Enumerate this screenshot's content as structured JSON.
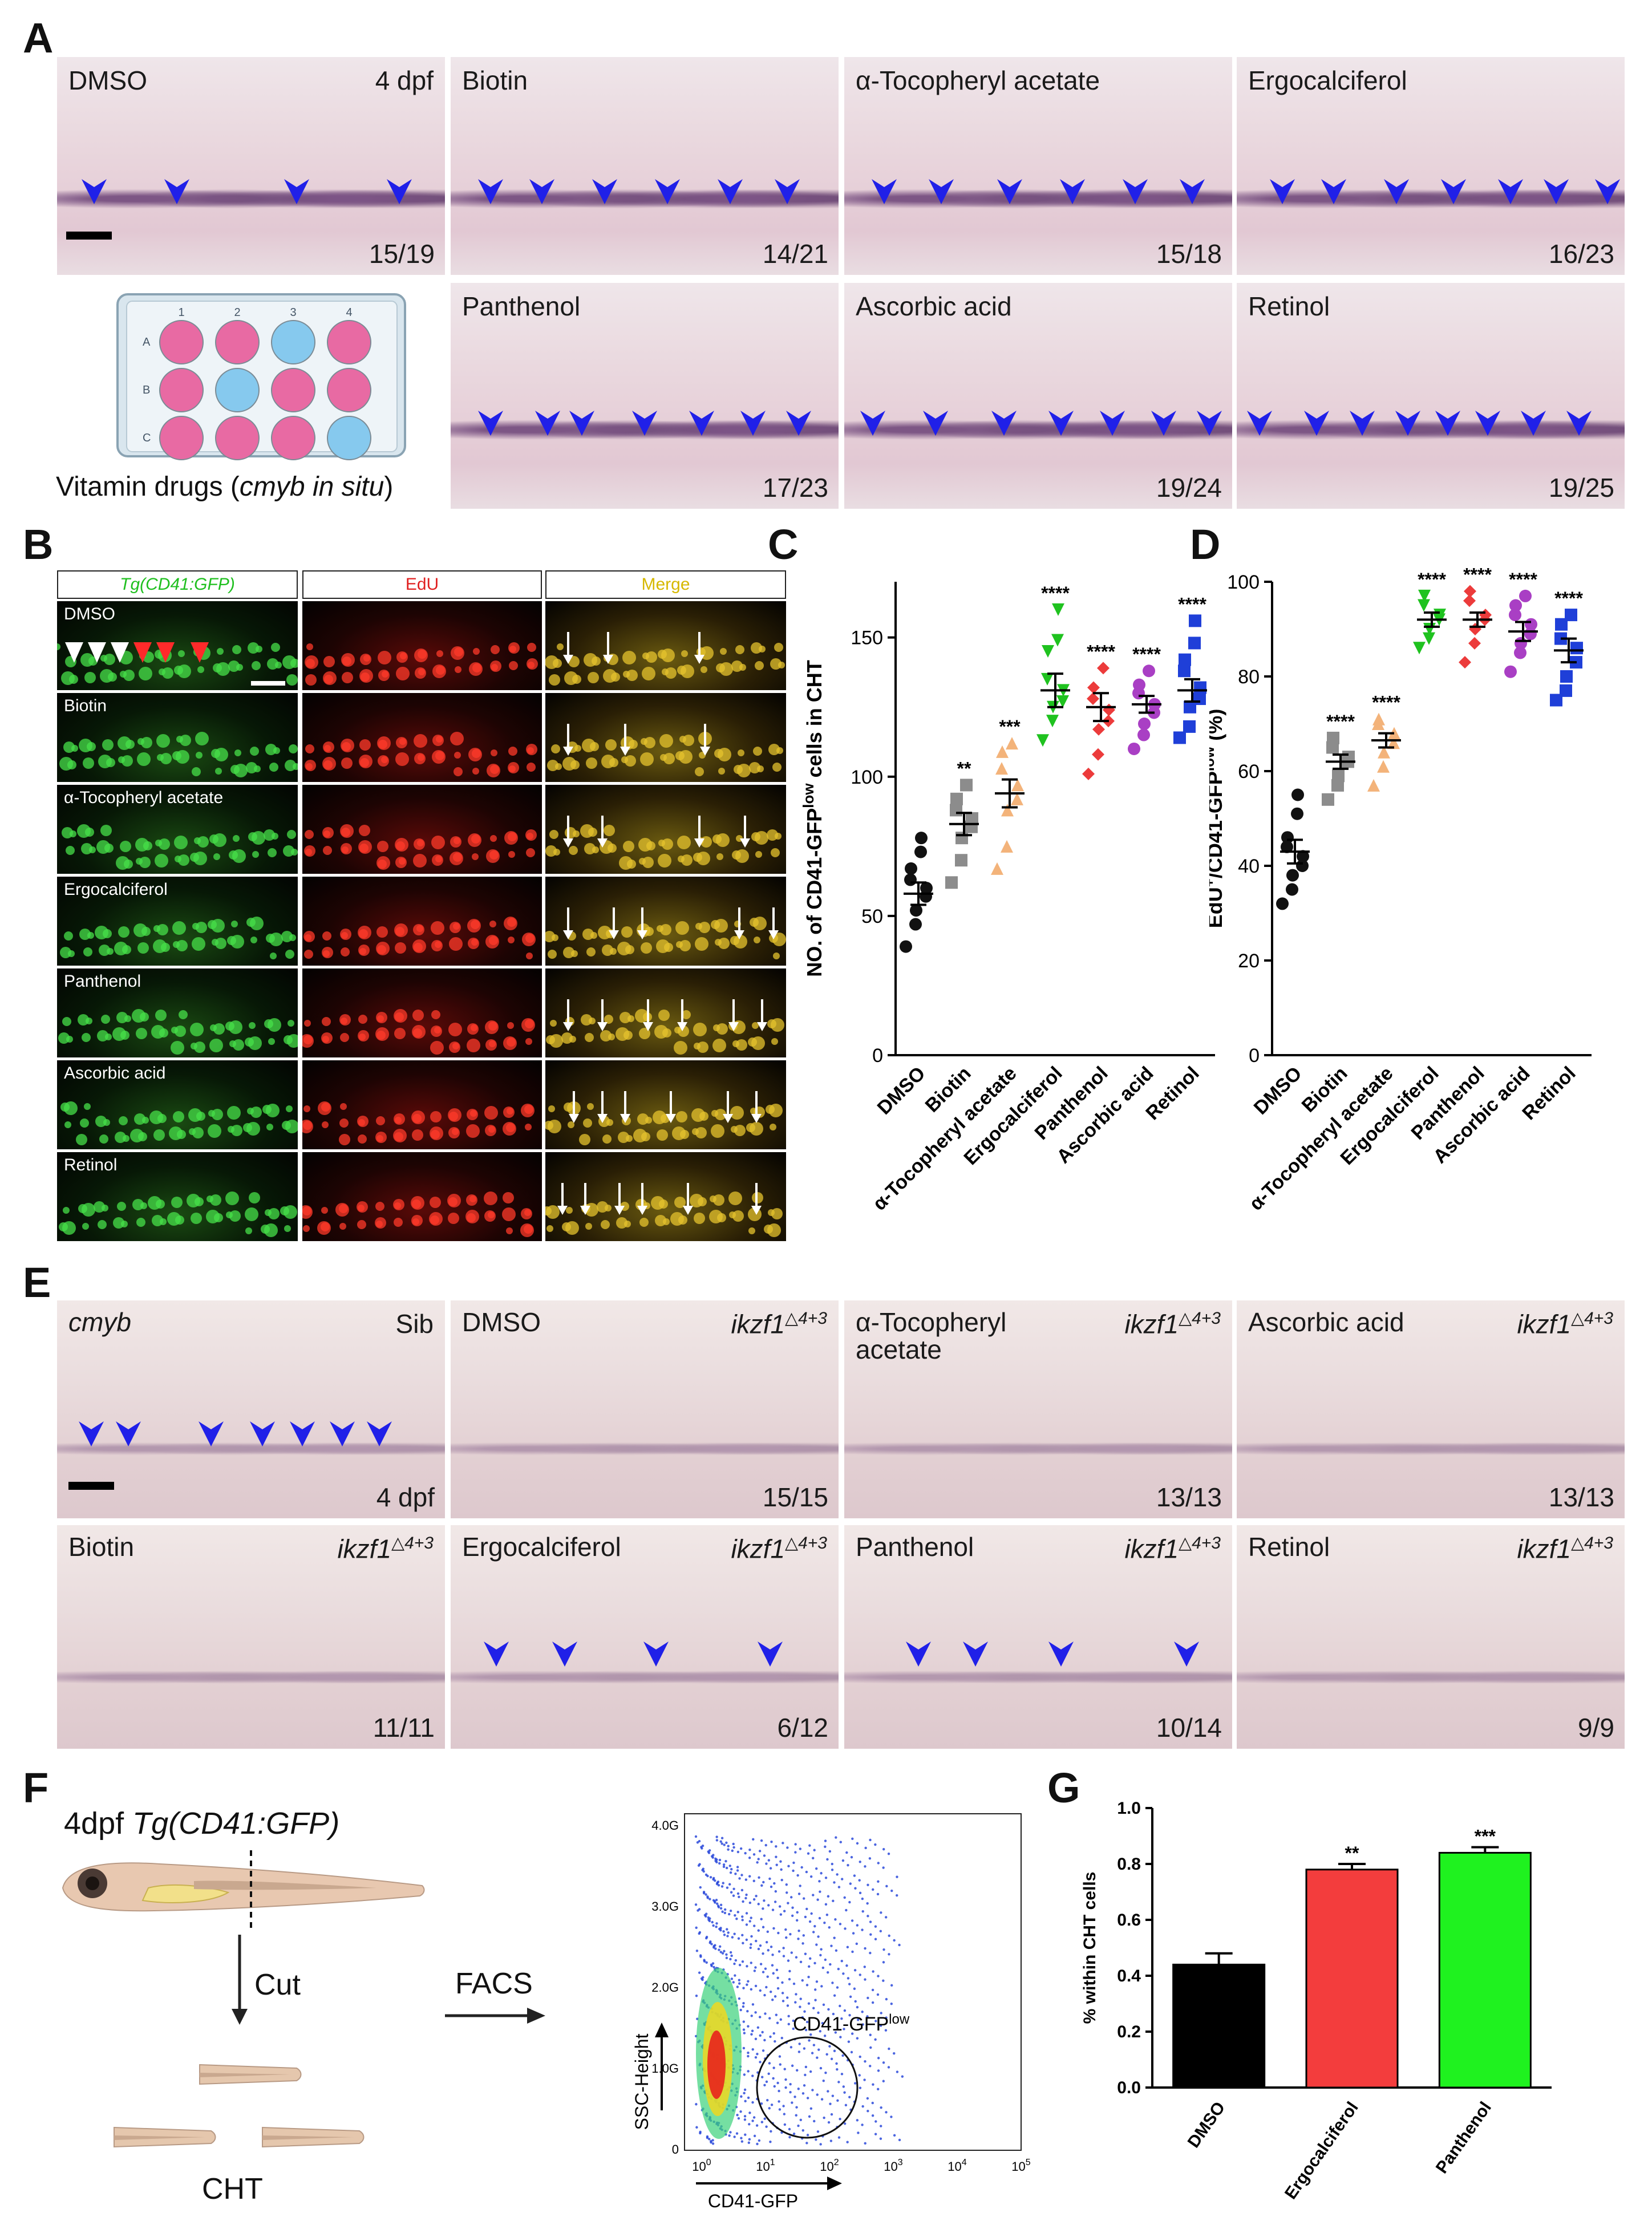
{
  "panels": {
    "A": {
      "letter": "A",
      "tiles": [
        {
          "label": "DMSO",
          "right": "4 dpf",
          "count": "15/19"
        },
        {
          "label": "Biotin",
          "count": "14/21"
        },
        {
          "label": "α-Tocopheryl acetate",
          "count": "15/18"
        },
        {
          "label": "Ergocalciferol",
          "count": "16/23"
        },
        {
          "label": "Panthenol",
          "count": "17/23"
        },
        {
          "label": "Ascorbic acid",
          "count": "19/24"
        },
        {
          "label": "Retinol",
          "count": "19/25"
        }
      ],
      "plate": {
        "cols": [
          "1",
          "2",
          "3",
          "4"
        ],
        "rows": [
          "A",
          "B",
          "C"
        ],
        "caption_pre": "Vitamin drugs (",
        "caption_italic": "cmyb in situ",
        "caption_post": ")"
      }
    },
    "B": {
      "letter": "B",
      "columns": [
        "Tg(CD41:GFP)",
        "EdU",
        "Merge"
      ],
      "rows": [
        "DMSO",
        "Biotin",
        "α-Tocopheryl acetate",
        "Ergocalciferol",
        "Panthenol",
        "Ascorbic acid",
        "Retinol"
      ]
    },
    "E": {
      "letter": "E",
      "tiles": [
        {
          "label": "cmyb",
          "right": "Sib",
          "count": "4 dpf"
        },
        {
          "label": "DMSO",
          "right": "ikzf1",
          "sup": "△4+3",
          "count": "15/15"
        },
        {
          "label": "α-Tocopheryl",
          "label2": "acetate",
          "right": "ikzf1",
          "sup": "△4+3",
          "count": "13/13"
        },
        {
          "label": "Ascorbic acid",
          "right": "ikzf1",
          "sup": "△4+3",
          "count": "13/13"
        },
        {
          "label": "Biotin",
          "right": "ikzf1",
          "sup": "△4+3",
          "count": "11/11"
        },
        {
          "label": "Ergocalciferol",
          "right": "ikzf1",
          "sup": "△4+3",
          "count": "6/12"
        },
        {
          "label": "Panthenol",
          "right": "ikzf1",
          "sup": "△4+3",
          "count": "10/14"
        },
        {
          "label": "Retinol",
          "right": "ikzf1",
          "sup": "△4+3",
          "count": "9/9"
        }
      ]
    },
    "F": {
      "letter": "F",
      "stage": "4dpf",
      "transgene": "Tg(CD41:GFP)",
      "cut": "Cut",
      "cht": "CHT",
      "facs": "FACS",
      "flow": {
        "y_label": "SSC-Height",
        "x_label": "CD41-GFP",
        "gate_label": "CD41-GFP",
        "gate_sup": "low",
        "y_ticks": [
          "4.0G",
          "3.0G",
          "2.0G",
          "1.0G",
          "0"
        ],
        "x_ticks": [
          "10",
          "10",
          "10",
          "10",
          "10",
          "10"
        ],
        "x_exps": [
          "0",
          "1",
          "2",
          "3",
          "4",
          "5"
        ]
      }
    }
  },
  "chart_data": [
    {
      "id": "C",
      "type": "scatter",
      "title": "",
      "ylabel": "NO. of CD41-GFPlow cells in CHT",
      "ylim": [
        0,
        170
      ],
      "yticks": [
        0,
        50,
        100,
        150
      ],
      "categories": [
        "DMSO",
        "Biotin",
        "α-Tocopheryl acetate",
        "Ergocalciferol",
        "Panthenol",
        "Ascorbic acid",
        "Retinol"
      ],
      "colors": [
        "#111111",
        "#8c8c8c",
        "#f3b37a",
        "#1fc21f",
        "#ec3b3b",
        "#a93fc4",
        "#1f3fd8"
      ],
      "markers": [
        "circle",
        "square",
        "triangle-up",
        "triangle-down",
        "diamond",
        "circle",
        "square"
      ],
      "means": [
        58,
        83,
        94,
        131,
        125,
        126,
        131
      ],
      "sems": [
        4,
        4,
        5,
        6,
        5,
        3,
        4
      ],
      "significance": [
        "",
        "**",
        "***",
        "****",
        "****",
        "****",
        "****"
      ],
      "points": [
        [
          39,
          47,
          52,
          57,
          60,
          63,
          67,
          73,
          78
        ],
        [
          62,
          70,
          78,
          82,
          85,
          88,
          92,
          97
        ],
        [
          67,
          75,
          88,
          92,
          97,
          103,
          109,
          112
        ],
        [
          113,
          120,
          125,
          127,
          131,
          135,
          145,
          149,
          160
        ],
        [
          101,
          108,
          117,
          120,
          124,
          128,
          132,
          139
        ],
        [
          110,
          115,
          119,
          123,
          126,
          130,
          133,
          138
        ],
        [
          114,
          118,
          125,
          128,
          132,
          138,
          142,
          148,
          156
        ]
      ]
    },
    {
      "id": "D",
      "type": "scatter",
      "title": "",
      "ylabel": "EdU+/CD41-GFPlow (%)",
      "ylim": [
        0,
        100
      ],
      "yticks": [
        0,
        20,
        40,
        60,
        80,
        100
      ],
      "categories": [
        "DMSO",
        "Biotin",
        "α-Tocopheryl acetate",
        "Ergocalciferol",
        "Panthenol",
        "Ascorbic acid",
        "Retinol"
      ],
      "colors": [
        "#111111",
        "#8c8c8c",
        "#f3b37a",
        "#1fc21f",
        "#ec3b3b",
        "#a93fc4",
        "#1f3fd8"
      ],
      "markers": [
        "circle",
        "square",
        "triangle-up",
        "triangle-down",
        "diamond",
        "circle",
        "square"
      ],
      "means": [
        43,
        62,
        66.5,
        92,
        92,
        89.5,
        85.5
      ],
      "sems": [
        2.5,
        1.5,
        1.5,
        1.5,
        1.5,
        2.0,
        2.5
      ],
      "significance": [
        "",
        "****",
        "****",
        "****",
        "****",
        "****",
        "****"
      ],
      "points": [
        [
          32,
          35,
          38,
          40,
          42,
          44,
          46,
          51,
          55
        ],
        [
          54,
          57,
          59,
          62,
          63,
          65,
          67
        ],
        [
          57,
          61,
          64,
          66,
          68,
          70,
          71
        ],
        [
          86,
          88,
          90,
          92,
          93,
          95,
          97
        ],
        [
          83,
          87,
          90,
          92,
          93,
          96,
          98
        ],
        [
          81,
          85,
          87,
          89,
          91,
          93,
          95,
          97
        ],
        [
          75,
          77,
          80,
          83,
          86,
          88,
          91,
          93
        ]
      ]
    },
    {
      "id": "G",
      "type": "bar",
      "title": "",
      "ylabel": "% within CHT cells",
      "ylim": [
        0,
        1.0
      ],
      "yticks": [
        "0.0",
        "0.2",
        "0.4",
        "0.6",
        "0.8",
        "1.0"
      ],
      "categories": [
        "DMSO",
        "Ergocalciferol",
        "Panthenol"
      ],
      "values": [
        0.44,
        0.78,
        0.84
      ],
      "errors": [
        0.04,
        0.02,
        0.02
      ],
      "colors": [
        "#000000",
        "#f33d3d",
        "#1ff21f"
      ],
      "significance": [
        "",
        "**",
        "***"
      ]
    }
  ]
}
